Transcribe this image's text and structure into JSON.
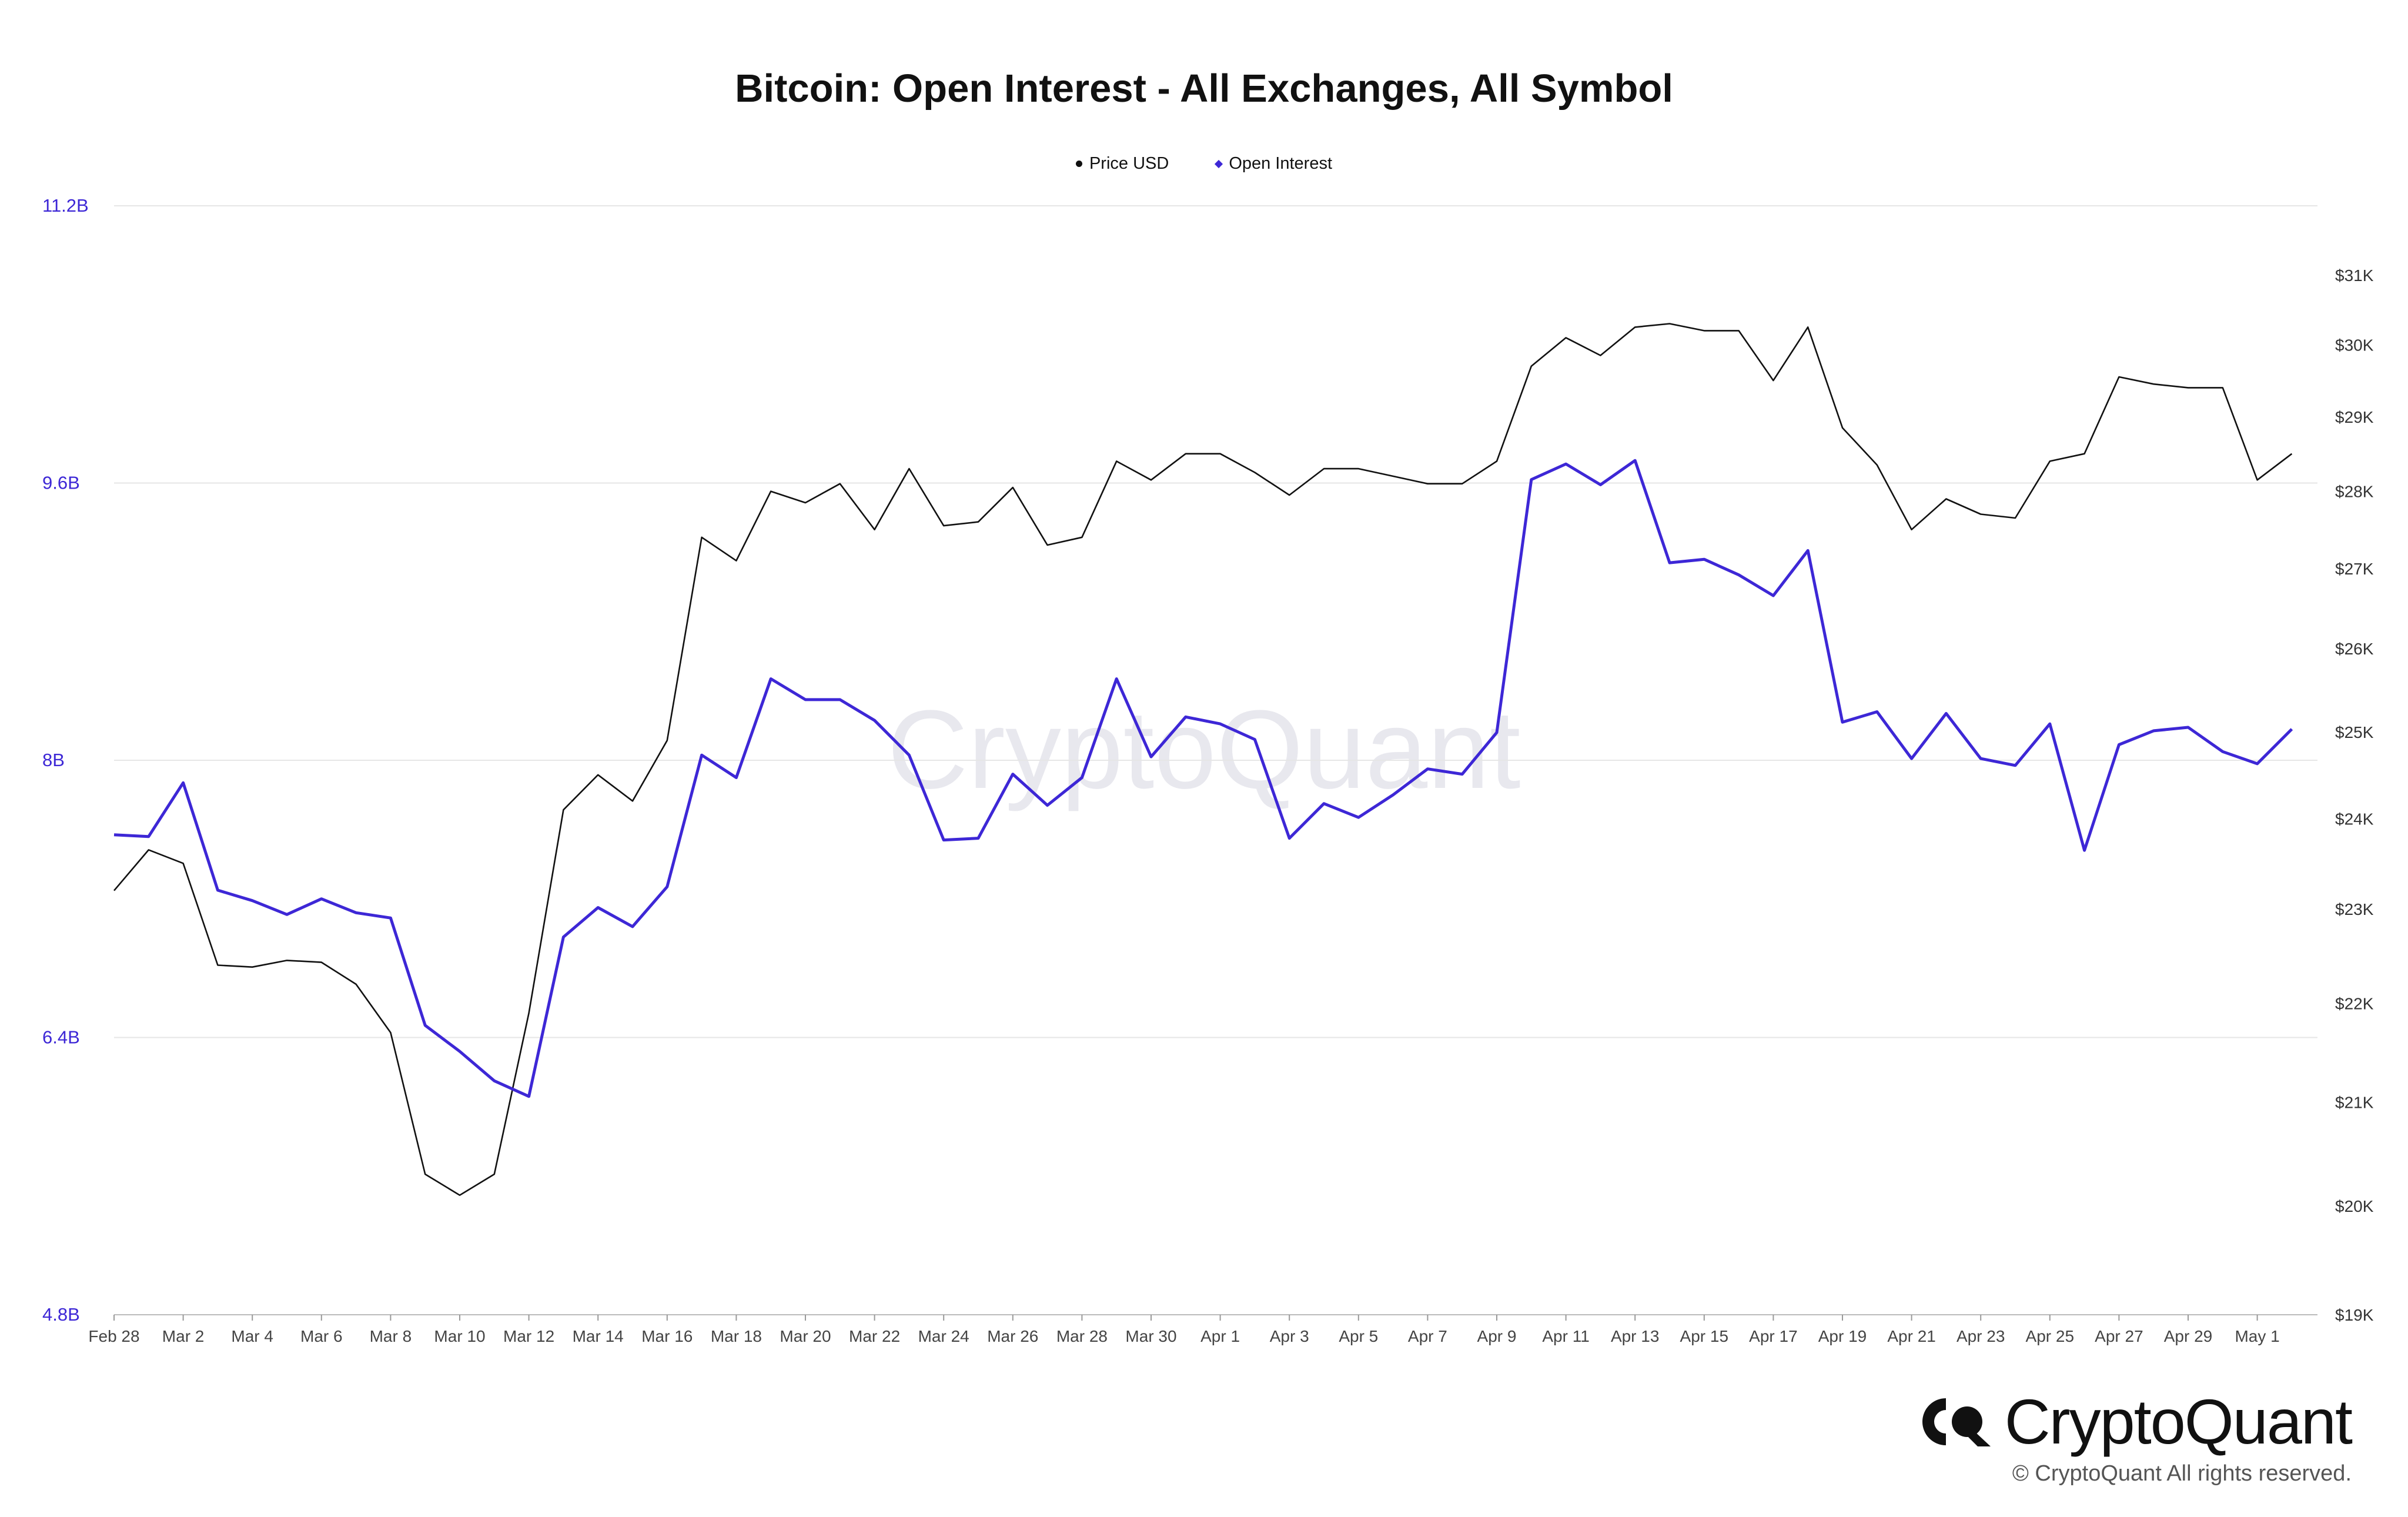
{
  "title": "Bitcoin: Open Interest - All Exchanges, All Symbol",
  "legend": [
    {
      "label": "Price USD",
      "color": "#111111",
      "marker": "dot"
    },
    {
      "label": "Open Interest",
      "color": "#3d27d6",
      "marker": "diamond"
    }
  ],
  "watermark": "CryptoQuant",
  "brand": {
    "name": "CryptoQuant",
    "copyright": "© CryptoQuant All rights reserved."
  },
  "chart_data": {
    "type": "line",
    "title": "Bitcoin: Open Interest - All Exchanges, All Symbol",
    "x": [
      "Feb 28",
      "Mar 1",
      "Mar 2",
      "Mar 3",
      "Mar 4",
      "Mar 5",
      "Mar 6",
      "Mar 7",
      "Mar 8",
      "Mar 9",
      "Mar 10",
      "Mar 11",
      "Mar 12",
      "Mar 13",
      "Mar 14",
      "Mar 15",
      "Mar 16",
      "Mar 17",
      "Mar 18",
      "Mar 19",
      "Mar 20",
      "Mar 21",
      "Mar 22",
      "Mar 23",
      "Mar 24",
      "Mar 25",
      "Mar 26",
      "Mar 27",
      "Mar 28",
      "Mar 29",
      "Mar 30",
      "Mar 31",
      "Apr 1",
      "Apr 2",
      "Apr 3",
      "Apr 4",
      "Apr 5",
      "Apr 6",
      "Apr 7",
      "Apr 8",
      "Apr 9",
      "Apr 10",
      "Apr 11",
      "Apr 12",
      "Apr 13",
      "Apr 14",
      "Apr 15",
      "Apr 16",
      "Apr 17",
      "Apr 18",
      "Apr 19",
      "Apr 20",
      "Apr 21",
      "Apr 22",
      "Apr 23",
      "Apr 24",
      "Apr 25",
      "Apr 26",
      "Apr 27",
      "Apr 28",
      "Apr 29",
      "Apr 30",
      "May 1",
      "May 2"
    ],
    "x_tick_labels": [
      "Feb 28",
      "Mar 2",
      "Mar 4",
      "Mar 6",
      "Mar 8",
      "Mar 10",
      "Mar 12",
      "Mar 14",
      "Mar 16",
      "Mar 18",
      "Mar 20",
      "Mar 22",
      "Mar 24",
      "Mar 26",
      "Mar 28",
      "Mar 30",
      "Apr 1",
      "Apr 3",
      "Apr 5",
      "Apr 7",
      "Apr 9",
      "Apr 11",
      "Apr 13",
      "Apr 15",
      "Apr 17",
      "Apr 19",
      "Apr 21",
      "Apr 23",
      "Apr 25",
      "Apr 27",
      "Apr 29",
      "May 1"
    ],
    "y_left": {
      "ticks": [
        4.8,
        6.4,
        8.0,
        9.6,
        11.2
      ],
      "tick_labels": [
        "4.8B",
        "6.4B",
        "8B",
        "9.6B",
        "11.2B"
      ],
      "range": [
        4.8,
        11.2
      ],
      "unit": "B",
      "color": "#3d27d6"
    },
    "y_right": {
      "ticks": [
        19000,
        20000,
        21000,
        22000,
        23000,
        24000,
        25000,
        26000,
        27000,
        28000,
        29000,
        30000,
        31000
      ],
      "tick_labels": [
        "$19K",
        "$20K",
        "$21K",
        "$22K",
        "$23K",
        "$24K",
        "$25K",
        "$26K",
        "$27K",
        "$28K",
        "$29K",
        "$30K",
        "$31K"
      ],
      "range": [
        19000,
        31000
      ],
      "scale": "log"
    },
    "grid": true,
    "legend_position": "top-center",
    "series": [
      {
        "name": "Price USD",
        "axis": "right",
        "color": "#111111",
        "values": [
          23200,
          23650,
          23500,
          22400,
          22380,
          22450,
          22430,
          22200,
          21700,
          20300,
          20100,
          20300,
          21900,
          24100,
          24500,
          24200,
          24900,
          27400,
          27100,
          28000,
          27850,
          28100,
          27500,
          28300,
          27550,
          27600,
          28050,
          27300,
          27400,
          28400,
          28150,
          28500,
          28500,
          28250,
          27950,
          28300,
          28300,
          28200,
          28100,
          28100,
          28400,
          29700,
          30100,
          29850,
          30250,
          30300,
          30200,
          30200,
          29500,
          30250,
          28850,
          28350,
          27500,
          27900,
          27700,
          27650,
          28400,
          28500,
          29550,
          29450,
          29400,
          29400,
          28150,
          28500
        ]
      },
      {
        "name": "Open Interest",
        "axis": "left",
        "color": "#3d27d6",
        "values": [
          7.57,
          7.56,
          7.87,
          7.25,
          7.19,
          7.11,
          7.2,
          7.12,
          7.09,
          6.47,
          6.32,
          6.15,
          6.06,
          6.98,
          7.15,
          7.04,
          7.27,
          8.03,
          7.9,
          8.47,
          8.35,
          8.35,
          8.23,
          8.03,
          7.54,
          7.55,
          7.92,
          7.74,
          7.9,
          8.47,
          8.02,
          8.25,
          8.21,
          8.12,
          7.55,
          7.75,
          7.67,
          7.8,
          7.95,
          7.92,
          8.16,
          9.62,
          9.71,
          9.59,
          9.73,
          9.14,
          9.16,
          9.07,
          8.95,
          9.21,
          8.22,
          8.28,
          8.01,
          8.27,
          8.01,
          7.97,
          8.21,
          7.48,
          8.09,
          8.17,
          8.19,
          8.05,
          7.98,
          8.18
        ]
      }
    ]
  }
}
